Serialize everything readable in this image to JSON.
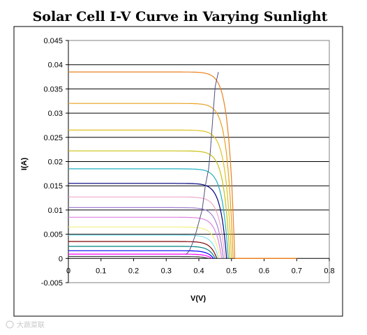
{
  "chart_data": {
    "type": "line",
    "title": "Solar Cell I-V Curve in Varying Sunlight",
    "xlabel": "V(V)",
    "ylabel": "I(A)",
    "xlim": [
      0,
      0.8
    ],
    "ylim": [
      -0.005,
      0.045
    ],
    "x_ticks": [
      "0",
      "0.1",
      "0.2",
      "0.3",
      "0.4",
      "0.5",
      "0.6",
      "0.7",
      "0.8"
    ],
    "y_ticks": [
      "-0.005",
      "0",
      "0.005",
      "0.01",
      "0.015",
      "0.02",
      "0.025",
      "0.03",
      "0.035",
      "0.04",
      "0.045"
    ],
    "x_tick_values": [
      0,
      0.1,
      0.2,
      0.3,
      0.4,
      0.5,
      0.6,
      0.7,
      0.8
    ],
    "y_tick_values": [
      -0.005,
      0,
      0.005,
      0.01,
      0.015,
      0.02,
      0.025,
      0.03,
      0.035,
      0.04,
      0.045
    ],
    "gridlines": "horizontal",
    "legend": "none",
    "plot_background": "#ffffff",
    "gridline_color": "#000000",
    "series": [
      {
        "isc": 0.0385,
        "voc": 0.51,
        "color": "#e8821e"
      },
      {
        "isc": 0.032,
        "voc": 0.505,
        "color": "#e8a020"
      },
      {
        "isc": 0.0265,
        "voc": 0.5,
        "color": "#e0c020"
      },
      {
        "isc": 0.0222,
        "voc": 0.495,
        "color": "#c8c010"
      },
      {
        "isc": 0.0185,
        "voc": 0.49,
        "color": "#20b0c0"
      },
      {
        "isc": 0.0155,
        "voc": 0.485,
        "color": "#000080"
      },
      {
        "isc": 0.0127,
        "voc": 0.48,
        "color": "#f0a8c8"
      },
      {
        "isc": 0.0105,
        "voc": 0.475,
        "color": "#a080d0"
      },
      {
        "isc": 0.0085,
        "voc": 0.47,
        "color": "#e080e0"
      },
      {
        "isc": 0.0065,
        "voc": 0.465,
        "color": "#f0f080"
      },
      {
        "isc": 0.0048,
        "voc": 0.46,
        "color": "#80e0f0"
      },
      {
        "isc": 0.0035,
        "voc": 0.455,
        "color": "#800000"
      },
      {
        "isc": 0.0025,
        "voc": 0.45,
        "color": "#008080"
      },
      {
        "isc": 0.0016,
        "voc": 0.445,
        "color": "#0000ff"
      },
      {
        "isc": 0.0009,
        "voc": 0.44,
        "color": "#ff00ff"
      },
      {
        "isc": 0.0004,
        "voc": 0.43,
        "color": "#404040"
      }
    ],
    "mpp_series": {
      "color": "#505080",
      "points": [
        [
          0.36,
          0.0008
        ],
        [
          0.37,
          0.0015
        ],
        [
          0.38,
          0.003
        ],
        [
          0.39,
          0.005
        ],
        [
          0.4,
          0.0075
        ],
        [
          0.41,
          0.01
        ],
        [
          0.415,
          0.0125
        ],
        [
          0.42,
          0.015
        ],
        [
          0.43,
          0.0185
        ],
        [
          0.435,
          0.022
        ],
        [
          0.44,
          0.0265
        ],
        [
          0.445,
          0.031
        ],
        [
          0.45,
          0.0355
        ],
        [
          0.46,
          0.0385
        ]
      ]
    },
    "flat_tail": {
      "x_end": 0.7,
      "color": "#e8821e"
    }
  },
  "watermark": {
    "text": "大蔬菜联"
  }
}
